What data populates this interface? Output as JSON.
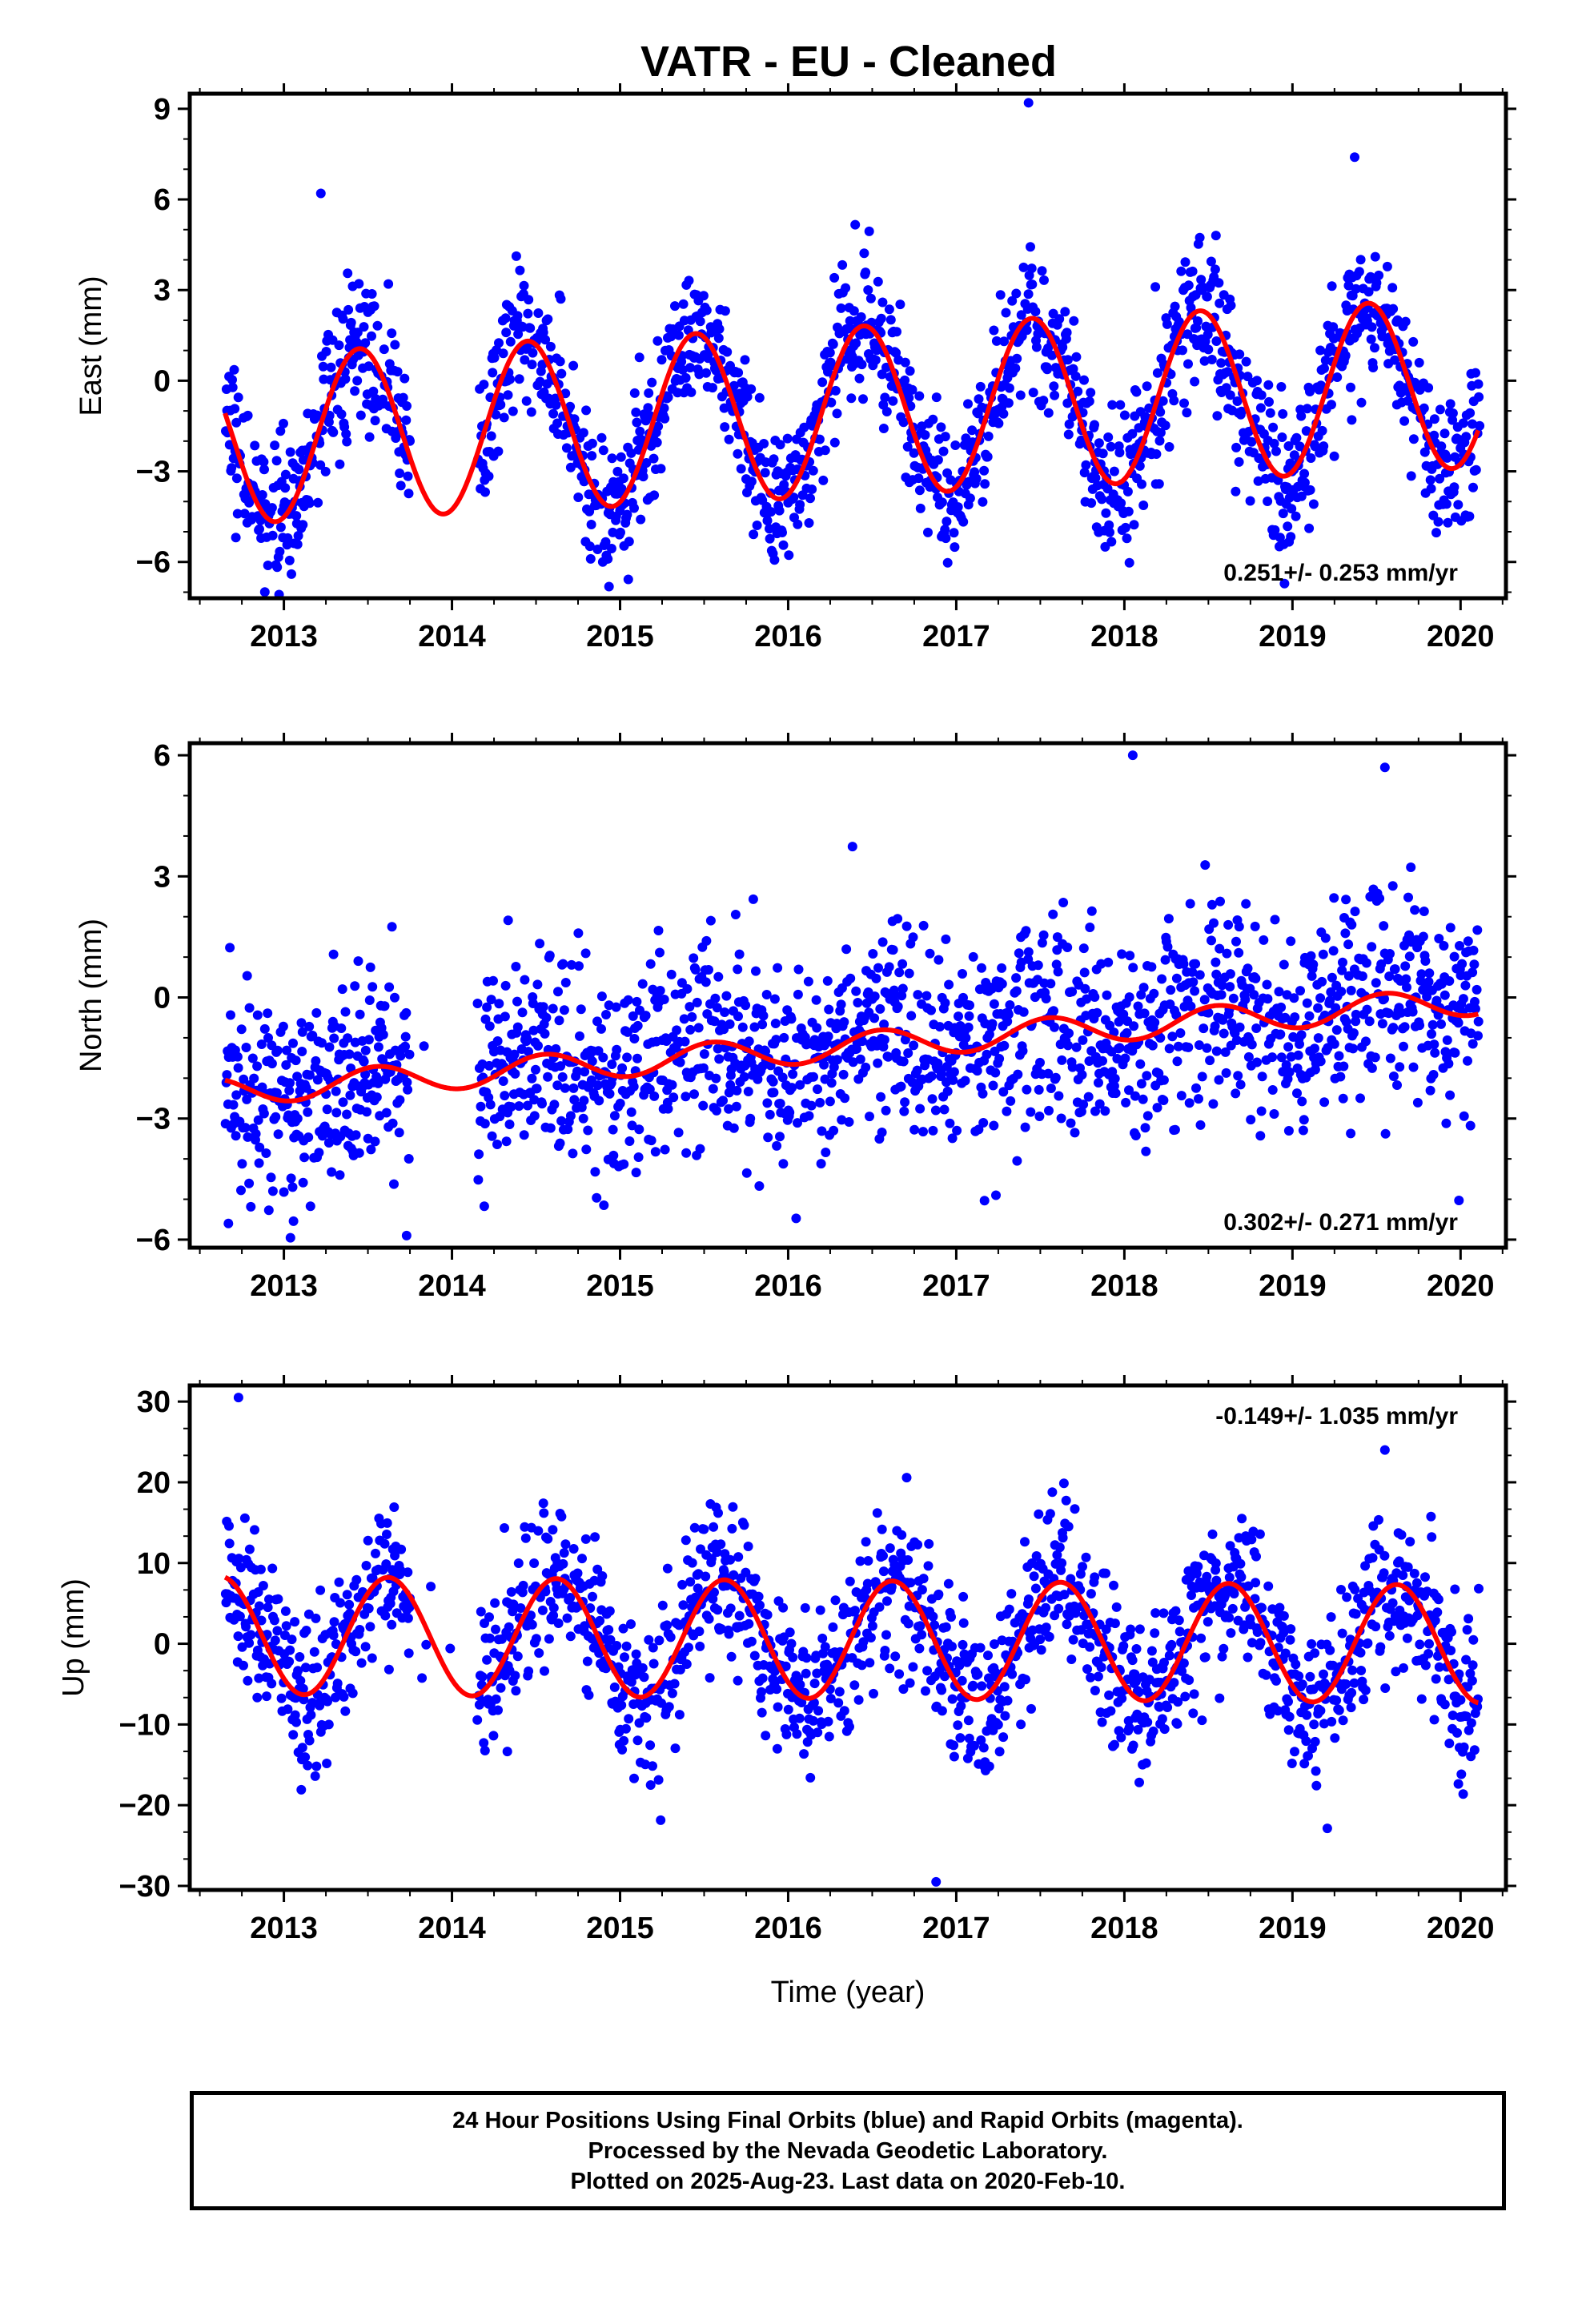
{
  "title": "VATR  - EU - Cleaned",
  "colors": {
    "points": "#0000ff",
    "fit": "#ff0000",
    "frame": "#000000"
  },
  "caption": {
    "lines": [
      "24 Hour Positions Using Final Orbits (blue) and Rapid Orbits (magenta).",
      "Processed by the Nevada Geodetic Laboratory.",
      "Plotted on 2025-Aug-23. Last data on 2020-Feb-10."
    ]
  },
  "chart_data": [
    {
      "type": "scatter",
      "ylabel": "East (mm)",
      "xlabel": "",
      "xlim": [
        2012.44,
        2020.27
      ],
      "ylim": [
        -7.2,
        9.5
      ],
      "xticks": [
        2013,
        2014,
        2015,
        2016,
        2017,
        2018,
        2019,
        2020
      ],
      "yticks": [
        -6,
        -3,
        0,
        3,
        6,
        9
      ],
      "rate_label": "0.251+/- 0.253 mm/yr",
      "rate_label_position": "bottom-right",
      "data_range": [
        2012.65,
        2020.11
      ],
      "data_gap": [
        2013.75,
        2014.15
      ],
      "fit": {
        "offset": -1.0,
        "rate": 0.251,
        "annual_amplitude": 2.8,
        "annual_peak": 2013.45
      },
      "scatter_sd": 1.2,
      "outliers": [
        {
          "x": 2017.43,
          "y": 9.2
        },
        {
          "x": 2019.37,
          "y": 7.4
        },
        {
          "x": 2013.22,
          "y": 6.2
        }
      ]
    },
    {
      "type": "scatter",
      "ylabel": "North (mm)",
      "xlabel": "",
      "xlim": [
        2012.44,
        2020.27
      ],
      "ylim": [
        -6.2,
        6.3
      ],
      "xticks": [
        2013,
        2014,
        2015,
        2016,
        2017,
        2018,
        2019,
        2020
      ],
      "yticks": [
        -6,
        -3,
        0,
        3,
        6
      ],
      "rate_label": "0.302+/- 0.271 mm/yr",
      "rate_label_position": "bottom-right",
      "data_range": [
        2012.65,
        2020.11
      ],
      "data_gap": [
        2013.75,
        2014.15
      ],
      "fit": {
        "offset": -1.2,
        "rate": 0.302,
        "annual_amplitude": 0.35,
        "annual_peak": 2013.55
      },
      "scatter_sd": 1.3,
      "outliers": [
        {
          "x": 2018.05,
          "y": 6.0
        },
        {
          "x": 2012.67,
          "y": -5.6
        },
        {
          "x": 2013.73,
          "y": -5.9
        },
        {
          "x": 2019.55,
          "y": 5.7
        }
      ]
    },
    {
      "type": "scatter",
      "ylabel": "Up (mm)",
      "xlabel": "Time (year)",
      "xlim": [
        2012.44,
        2020.27
      ],
      "ylim": [
        -30.5,
        32
      ],
      "xticks": [
        2013,
        2014,
        2015,
        2016,
        2017,
        2018,
        2019,
        2020
      ],
      "yticks": [
        -30,
        -20,
        -10,
        0,
        10,
        20,
        30
      ],
      "rate_label": "-0.149+/- 1.035 mm/yr",
      "rate_label_position": "top-right",
      "data_range": [
        2012.65,
        2020.11
      ],
      "data_gap": [
        2013.75,
        2014.15
      ],
      "fit": {
        "offset": 0.5,
        "rate": -0.149,
        "annual_amplitude": 7.3,
        "annual_peak": 2013.62
      },
      "scatter_sd": 5.0,
      "outliers": [
        {
          "x": 2012.73,
          "y": 30.5
        },
        {
          "x": 2016.88,
          "y": -29.5
        },
        {
          "x": 2019.55,
          "y": 24.0
        }
      ]
    }
  ]
}
